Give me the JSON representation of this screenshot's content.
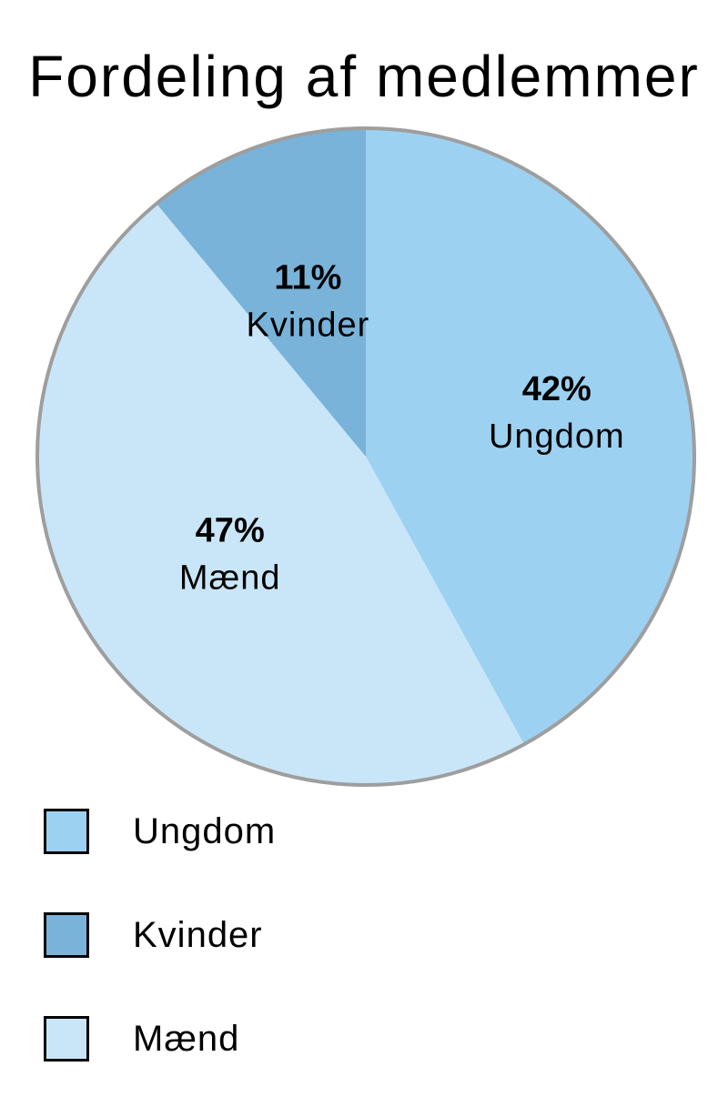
{
  "chart_data": {
    "type": "pie",
    "title": "Fordeling af medlemmer",
    "slices": [
      {
        "label": "Ungdom",
        "value": 42,
        "value_label": "42%",
        "color": "#9dd1f1"
      },
      {
        "label": "Kvinder",
        "value": 11,
        "value_label": "11%",
        "color": "#79b3d9"
      },
      {
        "label": "Mænd",
        "value": 47,
        "value_label": "47%",
        "color": "#c9e6f8"
      }
    ],
    "legend": {
      "placement": "bottom-left",
      "items": [
        {
          "label": "Ungdom",
          "color": "#9dd1f1"
        },
        {
          "label": "Kvinder",
          "color": "#79b3d9"
        },
        {
          "label": "Mænd",
          "color": "#c9e6f8"
        }
      ]
    },
    "border_color": "#9e9e9e"
  }
}
